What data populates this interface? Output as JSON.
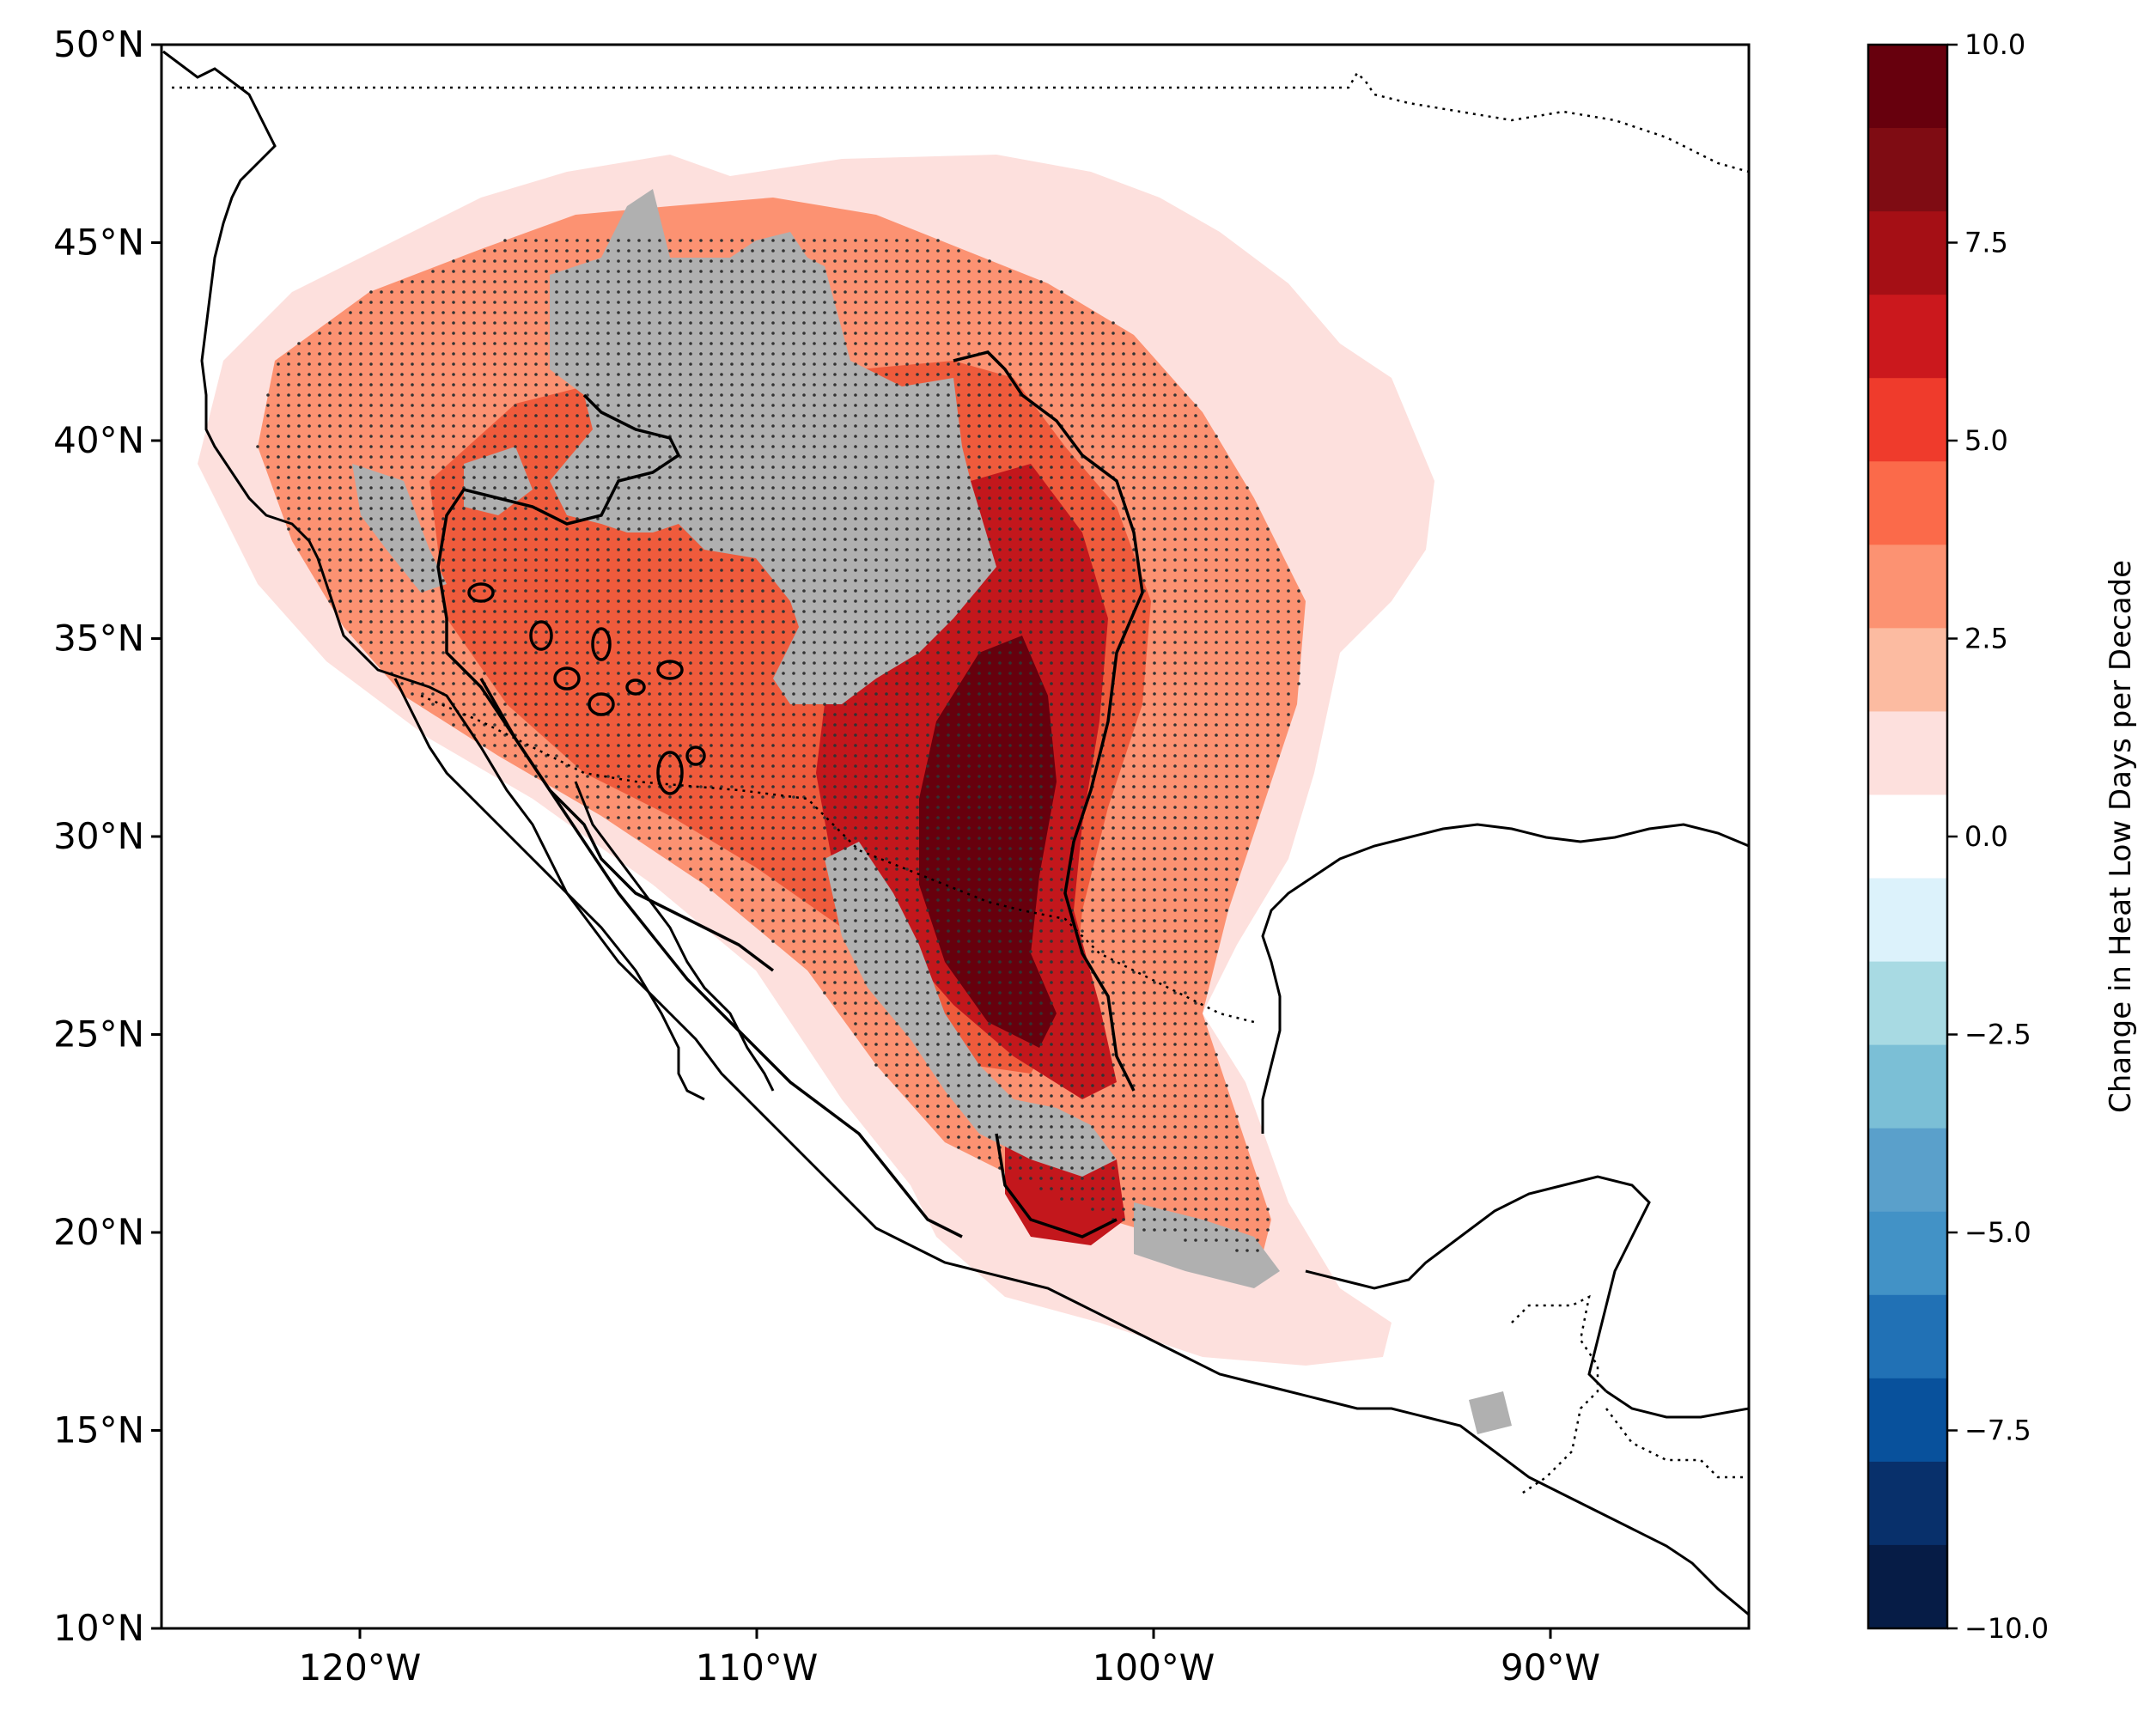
{
  "map": {
    "lon_range": [
      -125,
      -85
    ],
    "lat_range": [
      10,
      50
    ],
    "lat_ticks": [
      {
        "lat": 50,
        "label": "50°N"
      },
      {
        "lat": 45,
        "label": "45°N"
      },
      {
        "lat": 40,
        "label": "40°N"
      },
      {
        "lat": 35,
        "label": "35°N"
      },
      {
        "lat": 30,
        "label": "30°N"
      },
      {
        "lat": 25,
        "label": "25°N"
      },
      {
        "lat": 20,
        "label": "20°N"
      },
      {
        "lat": 15,
        "label": "15°N"
      },
      {
        "lat": 10,
        "label": "10°N"
      }
    ],
    "lon_ticks": [
      {
        "lon": -120,
        "label": "120°W"
      },
      {
        "lon": -110,
        "label": "110°W"
      },
      {
        "lon": -100,
        "label": "100°W"
      },
      {
        "lon": -90,
        "label": "90°W"
      }
    ],
    "colors": {
      "masked_grey": "#b0b0b0",
      "coast": "#000000"
    }
  },
  "colorbar": {
    "label": "Change in Heat Low Days per Decade",
    "range": [
      -10,
      10
    ],
    "step": 1.25,
    "ticks": [
      {
        "value": 10,
        "label": "10.0"
      },
      {
        "value": 7.5,
        "label": "7.5"
      },
      {
        "value": 5,
        "label": "5.0"
      },
      {
        "value": 2.5,
        "label": "2.5"
      },
      {
        "value": 0,
        "label": "0.0"
      },
      {
        "value": -2.5,
        "label": "−2.5"
      },
      {
        "value": -5,
        "label": "−5.0"
      },
      {
        "value": -7.5,
        "label": "−7.5"
      },
      {
        "value": -10,
        "label": "−10.0"
      }
    ],
    "colors_top_to_bottom": [
      "#67000d",
      "#7f0c13",
      "#a50f15",
      "#cb181d",
      "#ef3b2c",
      "#fb6a4a",
      "#fc9272",
      "#fcbba1",
      "#fde0dd",
      "#ffffff",
      "#dcf2fb",
      "#a8dae3",
      "#7bbfd6",
      "#5aa0cb",
      "#4292c6",
      "#2171b5",
      "#08519c",
      "#08306b",
      "#061c46"
    ]
  }
}
